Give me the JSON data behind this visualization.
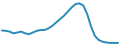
{
  "x": [
    0,
    1,
    2,
    3,
    4,
    5,
    6,
    7,
    8,
    9,
    10,
    11,
    12,
    13,
    14,
    15,
    16,
    17,
    18,
    19,
    20,
    21,
    22,
    23,
    24,
    25,
    26,
    27,
    28,
    29,
    30
  ],
  "y": [
    35,
    34,
    32,
    28,
    30,
    32,
    28,
    26,
    30,
    34,
    36,
    36,
    40,
    46,
    54,
    62,
    70,
    80,
    90,
    98,
    100,
    95,
    75,
    45,
    22,
    12,
    8,
    6,
    5,
    5,
    5
  ],
  "line_color": "#2a8ab8",
  "linewidth": 1.4,
  "background_color": "#ffffff"
}
